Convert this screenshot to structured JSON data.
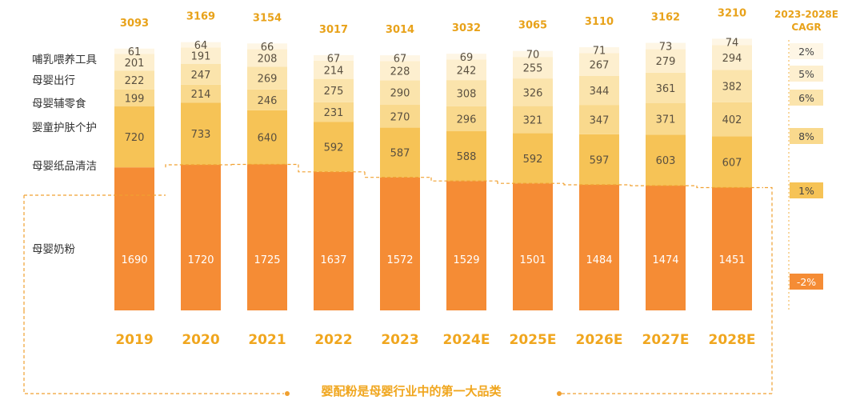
{
  "chart_data": {
    "type": "bar",
    "stacked": true,
    "categories": [
      "2019",
      "2020",
      "2021",
      "2022",
      "2023",
      "2024E",
      "2025E",
      "2026E",
      "2027E",
      "2028E"
    ],
    "totals": [
      3093,
      3169,
      3154,
      3017,
      3014,
      3032,
      3065,
      3110,
      3162,
      3210
    ],
    "series": [
      {
        "name": "母婴奶粉",
        "values": [
          1690,
          1720,
          1725,
          1637,
          1572,
          1529,
          1501,
          1484,
          1474,
          1451
        ],
        "cagr": "-2%",
        "color": "#f58c35"
      },
      {
        "name": "母婴纸品清洁",
        "values": [
          720,
          733,
          640,
          592,
          587,
          588,
          592,
          597,
          603,
          607
        ],
        "cagr": "1%",
        "color": "#f6c356"
      },
      {
        "name": "婴童护肤个护",
        "values": [
          199,
          214,
          246,
          231,
          270,
          296,
          321,
          347,
          371,
          402
        ],
        "cagr": "8%",
        "color": "#f9d98d"
      },
      {
        "name": "母婴辅零食",
        "values": [
          222,
          247,
          269,
          275,
          290,
          308,
          326,
          344,
          361,
          382
        ],
        "cagr": "6%",
        "color": "#fbe4ac"
      },
      {
        "name": "母婴出行",
        "values": [
          201,
          191,
          208,
          214,
          228,
          242,
          255,
          267,
          279,
          294
        ],
        "cagr": "5%",
        "color": "#fdefcf"
      },
      {
        "name": "哺乳喂养工具",
        "values": [
          61,
          64,
          66,
          67,
          67,
          69,
          70,
          71,
          73,
          74
        ],
        "cagr": "2%",
        "color": "#fef6e5"
      }
    ],
    "cagr_header": [
      "2023-2028E",
      "CAGR"
    ],
    "footer": "婴配粉是母婴行业中的第一大品类"
  }
}
